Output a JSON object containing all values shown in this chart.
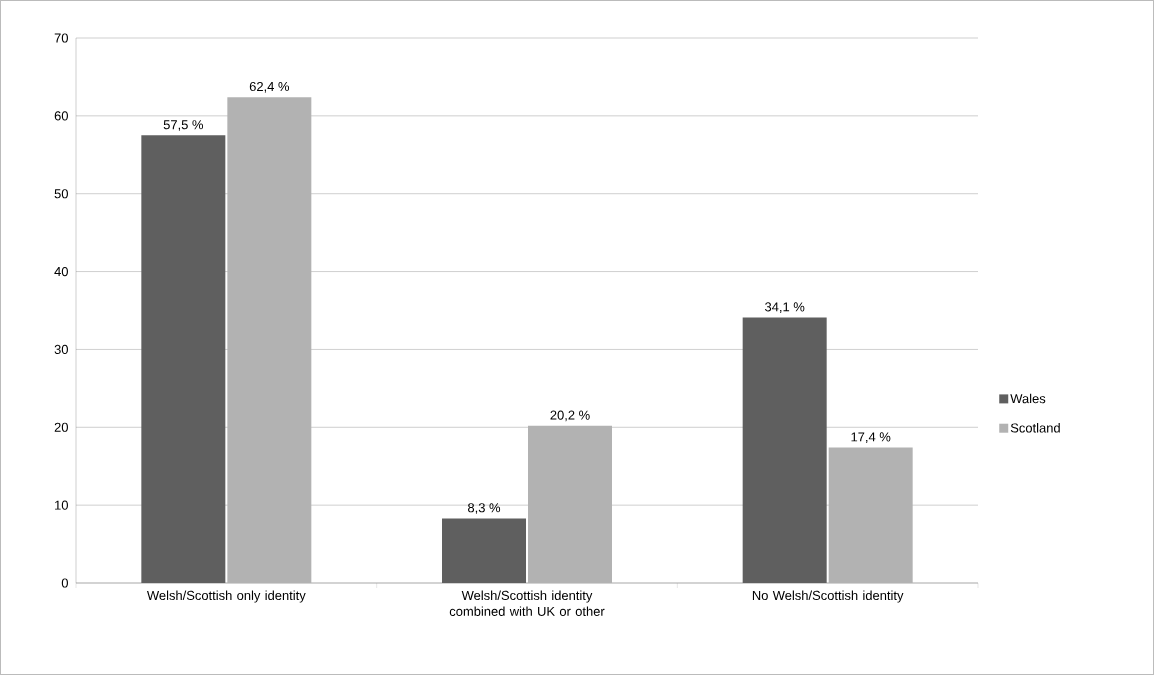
{
  "chart_data": {
    "type": "bar",
    "categories": [
      "Welsh/Scottish only identity",
      "Welsh/Scottish identity combined with UK or other",
      "No Welsh/Scottish identity"
    ],
    "series": [
      {
        "name": "Wales",
        "color": "#5f5f5f",
        "values": [
          57.5,
          8.3,
          34.1
        ],
        "value_labels": [
          "57,5 %",
          "8,3 %",
          "34,1 %"
        ]
      },
      {
        "name": "Scotland",
        "color": "#b2b2b2",
        "values": [
          62.4,
          20.2,
          17.4
        ],
        "value_labels": [
          "62,4 %",
          "20,2 %",
          "17,4 %"
        ]
      }
    ],
    "ylim": [
      0,
      70
    ],
    "yticks": [
      0,
      10,
      20,
      30,
      40,
      50,
      60,
      70
    ],
    "grid": "y",
    "legend": "right"
  }
}
